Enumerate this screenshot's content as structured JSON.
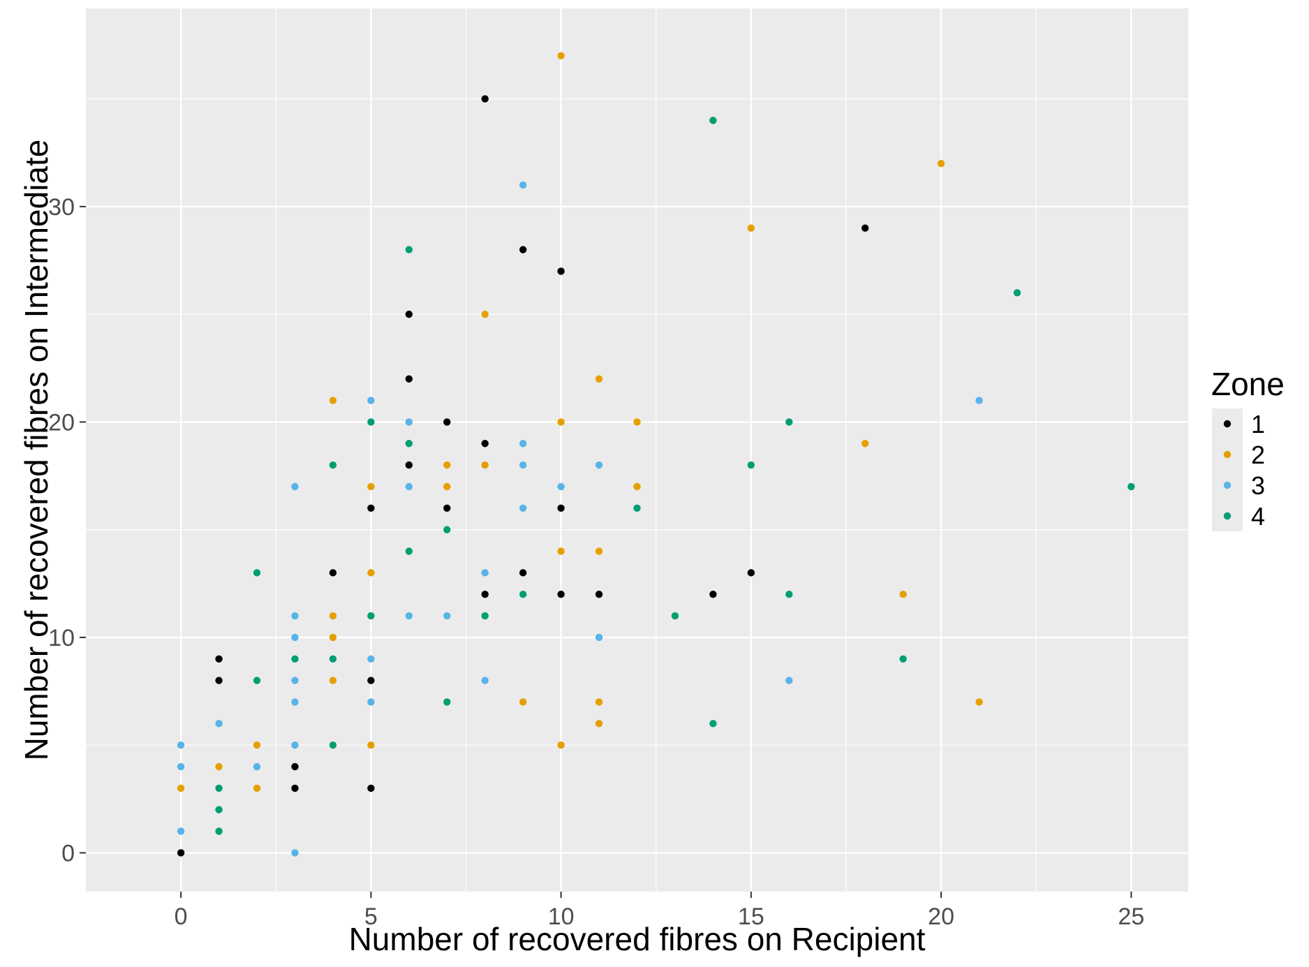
{
  "chart_data": {
    "type": "scatter",
    "title": "",
    "xlabel": "Number of recovered fibres on Recipient",
    "ylabel": "Number of recovered fibres on Intermediate",
    "xlim": [
      -2.5,
      26.5
    ],
    "ylim": [
      -1.8,
      39.2
    ],
    "x_ticks": [
      0,
      5,
      10,
      15,
      20,
      25
    ],
    "y_ticks": [
      0,
      10,
      20,
      30
    ],
    "x_minor_ticks": [
      2.5,
      7.5,
      12.5,
      17.5,
      22.5
    ],
    "y_minor_ticks": [
      5,
      15,
      25,
      35
    ],
    "grid": true,
    "background": "#EBEBEB",
    "gridline_color": "#FFFFFF",
    "legend": {
      "title": "Zone",
      "position": "right",
      "background": "#EBEBEB"
    },
    "series": [
      {
        "name": "1",
        "color": "#000000",
        "points": [
          [
            0,
            0
          ],
          [
            1,
            9
          ],
          [
            1,
            8
          ],
          [
            3,
            4
          ],
          [
            3,
            3
          ],
          [
            4,
            13
          ],
          [
            5,
            16
          ],
          [
            5,
            8
          ],
          [
            5,
            3
          ],
          [
            6,
            25
          ],
          [
            6,
            22
          ],
          [
            6,
            18
          ],
          [
            7,
            20
          ],
          [
            7,
            16
          ],
          [
            8,
            35
          ],
          [
            8,
            19
          ],
          [
            8,
            12
          ],
          [
            9,
            28
          ],
          [
            9,
            13
          ],
          [
            10,
            27
          ],
          [
            10,
            16
          ],
          [
            10,
            12
          ],
          [
            11,
            12
          ],
          [
            14,
            12
          ],
          [
            15,
            13
          ],
          [
            18,
            29
          ]
        ]
      },
      {
        "name": "2",
        "color": "#E69F00",
        "points": [
          [
            0,
            3
          ],
          [
            1,
            4
          ],
          [
            2,
            5
          ],
          [
            2,
            3
          ],
          [
            4,
            21
          ],
          [
            4,
            11
          ],
          [
            4,
            10
          ],
          [
            4,
            8
          ],
          [
            5,
            17
          ],
          [
            5,
            13
          ],
          [
            5,
            5
          ],
          [
            7,
            18
          ],
          [
            7,
            17
          ],
          [
            8,
            25
          ],
          [
            8,
            18
          ],
          [
            9,
            7
          ],
          [
            10,
            37
          ],
          [
            10,
            20
          ],
          [
            10,
            14
          ],
          [
            10,
            5
          ],
          [
            11,
            22
          ],
          [
            11,
            14
          ],
          [
            11,
            7
          ],
          [
            11,
            6
          ],
          [
            12,
            20
          ],
          [
            12,
            17
          ],
          [
            15,
            29
          ],
          [
            18,
            19
          ],
          [
            19,
            12
          ],
          [
            20,
            32
          ],
          [
            21,
            7
          ]
        ]
      },
      {
        "name": "3",
        "color": "#56B4E9",
        "points": [
          [
            0,
            5
          ],
          [
            0,
            4
          ],
          [
            0,
            1
          ],
          [
            1,
            6
          ],
          [
            2,
            4
          ],
          [
            3,
            17
          ],
          [
            3,
            11
          ],
          [
            3,
            10
          ],
          [
            3,
            8
          ],
          [
            3,
            7
          ],
          [
            3,
            5
          ],
          [
            3,
            0
          ],
          [
            5,
            21
          ],
          [
            5,
            9
          ],
          [
            5,
            7
          ],
          [
            6,
            20
          ],
          [
            6,
            17
          ],
          [
            6,
            11
          ],
          [
            7,
            11
          ],
          [
            8,
            13
          ],
          [
            8,
            8
          ],
          [
            9,
            31
          ],
          [
            9,
            19
          ],
          [
            9,
            18
          ],
          [
            9,
            16
          ],
          [
            10,
            17
          ],
          [
            11,
            18
          ],
          [
            11,
            10
          ],
          [
            16,
            8
          ],
          [
            21,
            21
          ]
        ]
      },
      {
        "name": "4",
        "color": "#009E73",
        "points": [
          [
            1,
            3
          ],
          [
            1,
            2
          ],
          [
            1,
            1
          ],
          [
            2,
            13
          ],
          [
            2,
            8
          ],
          [
            3,
            9
          ],
          [
            4,
            18
          ],
          [
            4,
            9
          ],
          [
            4,
            5
          ],
          [
            5,
            20
          ],
          [
            5,
            11
          ],
          [
            6,
            28
          ],
          [
            6,
            19
          ],
          [
            6,
            14
          ],
          [
            7,
            15
          ],
          [
            7,
            7
          ],
          [
            8,
            11
          ],
          [
            9,
            12
          ],
          [
            12,
            16
          ],
          [
            13,
            11
          ],
          [
            14,
            34
          ],
          [
            14,
            6
          ],
          [
            15,
            18
          ],
          [
            16,
            20
          ],
          [
            16,
            12
          ],
          [
            19,
            9
          ],
          [
            22,
            26
          ],
          [
            25,
            17
          ]
        ]
      }
    ]
  }
}
